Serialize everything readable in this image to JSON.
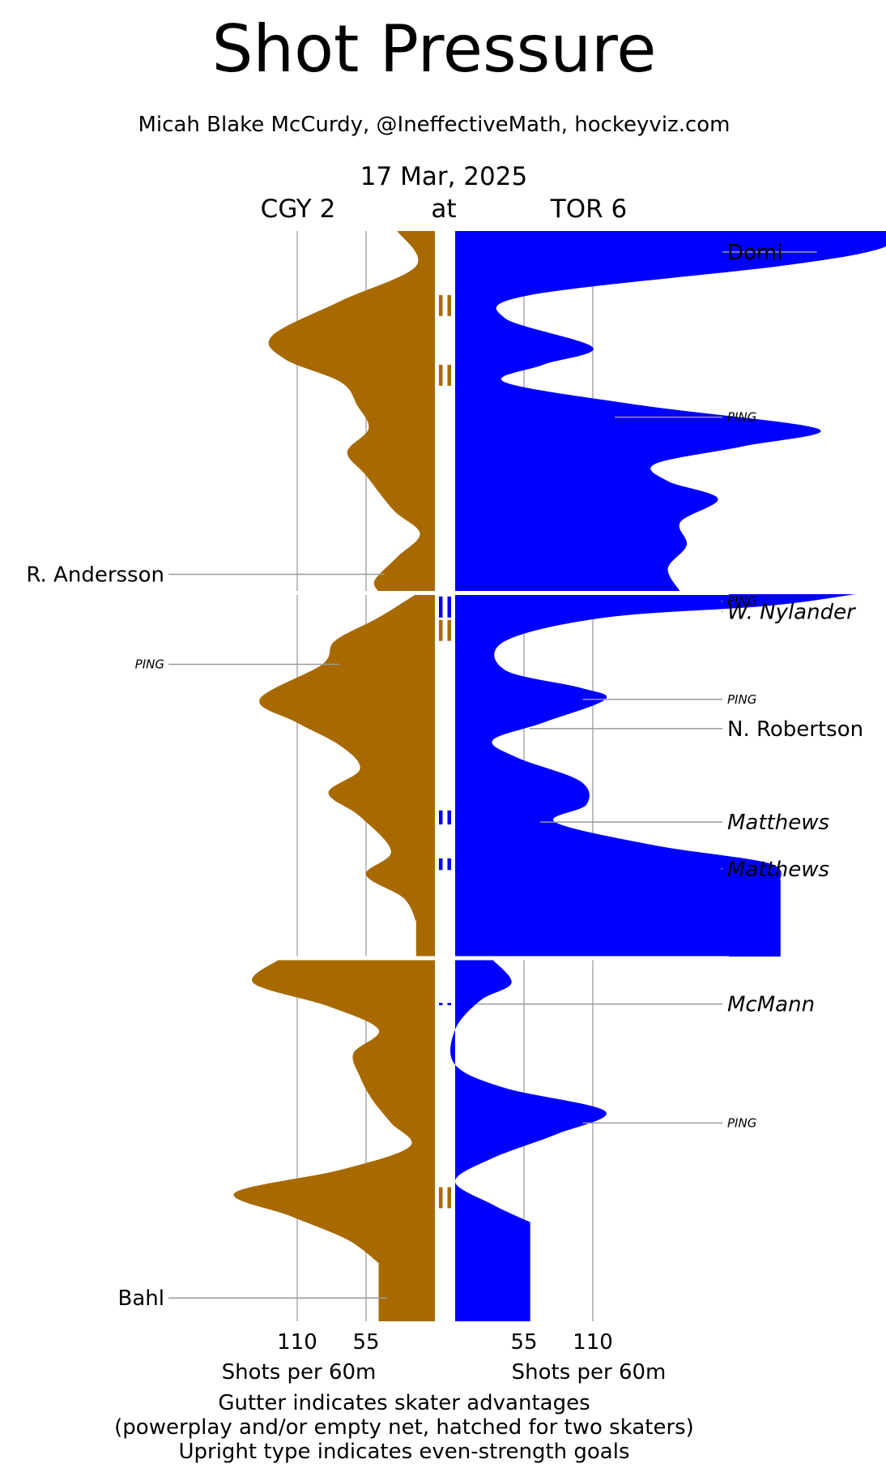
{
  "header": {
    "title": "Shot Pressure",
    "subtitle": "Micah Blake McCurdy, @IneffectiveMath, hockeyviz.com",
    "date": "17 Mar, 2025",
    "away": "CGY 2",
    "at": "at",
    "home": "TOR 6"
  },
  "colors": {
    "away": "#a86a00",
    "home": "#0000ff",
    "grid": "#aaaaaa",
    "divider": "#ffffff"
  },
  "footer": {
    "away_axis_label": "Shots per 60m",
    "home_axis_label": "Shots per 60m",
    "note_line1": "Gutter indicates skater advantages",
    "note_line2": "(powerplay and/or empty net, hatched for two skaters)",
    "note_line3": "Upright type indicates even-strength goals"
  },
  "chart_data": {
    "type": "area",
    "orientation": "mirrored-vertical",
    "x_axis_unit": "Shots per 60m",
    "away_ticks": [
      110,
      55
    ],
    "home_ticks": [
      55,
      110
    ],
    "periods": 3,
    "minutes_per_period": 20,
    "away": {
      "team": "CGY",
      "goals": 2,
      "profile": [
        [
          1,
          30,
          0
        ],
        [
          1,
          15,
          3
        ],
        [
          1,
          75,
          6
        ],
        [
          1,
          130,
          9
        ],
        [
          1,
          120,
          11
        ],
        [
          1,
          75,
          13
        ],
        [
          1,
          62,
          15
        ],
        [
          1,
          53,
          17
        ],
        [
          1,
          70,
          19
        ],
        [
          1,
          55,
          21
        ],
        [
          1,
          33,
          24
        ],
        [
          1,
          12,
          26
        ],
        [
          1,
          30,
          28
        ],
        [
          1,
          48,
          30
        ],
        [
          1,
          45,
          31
        ],
        [
          2,
          15,
          0
        ],
        [
          2,
          45,
          2
        ],
        [
          2,
          80,
          4
        ],
        [
          2,
          90,
          6
        ],
        [
          2,
          140,
          9
        ],
        [
          2,
          110,
          11
        ],
        [
          2,
          75,
          13
        ],
        [
          2,
          60,
          15
        ],
        [
          2,
          85,
          17
        ],
        [
          2,
          60,
          19
        ],
        [
          2,
          35,
          22
        ],
        [
          2,
          55,
          24
        ],
        [
          2,
          25,
          26
        ],
        [
          2,
          15,
          28
        ],
        [
          3,
          125,
          0
        ],
        [
          3,
          145,
          2
        ],
        [
          3,
          85,
          4
        ],
        [
          3,
          45,
          6
        ],
        [
          3,
          65,
          8
        ],
        [
          3,
          60,
          10
        ],
        [
          3,
          50,
          12
        ],
        [
          3,
          35,
          14
        ],
        [
          3,
          20,
          16
        ],
        [
          3,
          75,
          18
        ],
        [
          3,
          160,
          20
        ],
        [
          3,
          115,
          22
        ],
        [
          3,
          70,
          24
        ],
        [
          3,
          45,
          26
        ]
      ],
      "goals_list": [
        {
          "player": "R. Andersson",
          "period": 1,
          "minute": 29.5,
          "even_strength": true
        },
        {
          "player": "Bahl",
          "period": 3,
          "minute": 29,
          "even_strength": true
        }
      ],
      "pings": [
        {
          "period": 2,
          "minute": 6
        }
      ],
      "advantages": [
        {
          "period": 1,
          "start": 5.5,
          "end": 7.3
        },
        {
          "period": 1,
          "start": 11.5,
          "end": 13.3
        },
        {
          "period": 2,
          "start": 2.2,
          "end": 4
        },
        {
          "period": 3,
          "start": 19.5,
          "end": 21.3
        }
      ]
    },
    "home": {
      "team": "TOR",
      "goals": 6,
      "profile": [
        [
          1,
          350,
          0
        ],
        [
          1,
          340,
          1.5
        ],
        [
          1,
          260,
          3
        ],
        [
          1,
          60,
          5.5
        ],
        [
          1,
          40,
          7.5
        ],
        [
          1,
          110,
          10
        ],
        [
          1,
          70,
          11.5
        ],
        [
          1,
          40,
          13
        ],
        [
          1,
          150,
          15
        ],
        [
          1,
          290,
          17
        ],
        [
          1,
          230,
          18.5
        ],
        [
          1,
          160,
          20
        ],
        [
          1,
          170,
          21.5
        ],
        [
          1,
          210,
          23
        ],
        [
          1,
          180,
          25
        ],
        [
          1,
          185,
          27
        ],
        [
          1,
          170,
          29
        ],
        [
          1,
          180,
          31
        ],
        [
          2,
          320,
          0
        ],
        [
          2,
          250,
          1
        ],
        [
          2,
          120,
          2
        ],
        [
          2,
          40,
          4
        ],
        [
          2,
          40,
          6.5
        ],
        [
          2,
          100,
          8
        ],
        [
          2,
          120,
          9
        ],
        [
          2,
          70,
          11
        ],
        [
          2,
          30,
          12.5
        ],
        [
          2,
          50,
          14
        ],
        [
          2,
          100,
          16
        ],
        [
          2,
          105,
          18
        ],
        [
          2,
          80,
          19.5
        ],
        [
          2,
          160,
          21.5
        ],
        [
          2,
          250,
          23
        ],
        [
          2,
          260,
          24.5
        ],
        [
          3,
          30,
          0
        ],
        [
          3,
          45,
          2
        ],
        [
          3,
          20,
          3.5
        ],
        [
          3,
          0,
          6
        ],
        [
          3,
          0,
          9
        ],
        [
          3,
          40,
          11
        ],
        [
          3,
          120,
          13
        ],
        [
          3,
          80,
          15
        ],
        [
          3,
          30,
          17
        ],
        [
          3,
          0,
          19
        ],
        [
          3,
          30,
          21
        ],
        [
          3,
          60,
          22.5
        ]
      ],
      "goals_list": [
        {
          "player": "Domi",
          "period": 1,
          "minute": 1.8,
          "even_strength": true
        },
        {
          "player": "W. Nylander",
          "period": 2,
          "minute": 1.5,
          "even_strength": false
        },
        {
          "player": "N. Robertson",
          "period": 2,
          "minute": 11.5,
          "even_strength": true
        },
        {
          "player": "Matthews",
          "period": 2,
          "minute": 19.5,
          "even_strength": false
        },
        {
          "player": "Matthews",
          "period": 2,
          "minute": 23.5,
          "even_strength": false
        },
        {
          "player": "McMann",
          "period": 3,
          "minute": 3.8,
          "even_strength": false
        }
      ],
      "pings": [
        {
          "period": 1,
          "minute": 16
        },
        {
          "period": 2,
          "minute": 0.6
        },
        {
          "period": 2,
          "minute": 9
        },
        {
          "period": 3,
          "minute": 14
        }
      ],
      "advantages": [
        {
          "period": 2,
          "start": 0.2,
          "end": 2
        },
        {
          "period": 2,
          "start": 18.5,
          "end": 19.7
        },
        {
          "period": 2,
          "start": 22.6,
          "end": 23.6
        },
        {
          "period": 3,
          "start": 3.7,
          "end": 3.9
        }
      ]
    },
    "ping_label": "PING"
  }
}
